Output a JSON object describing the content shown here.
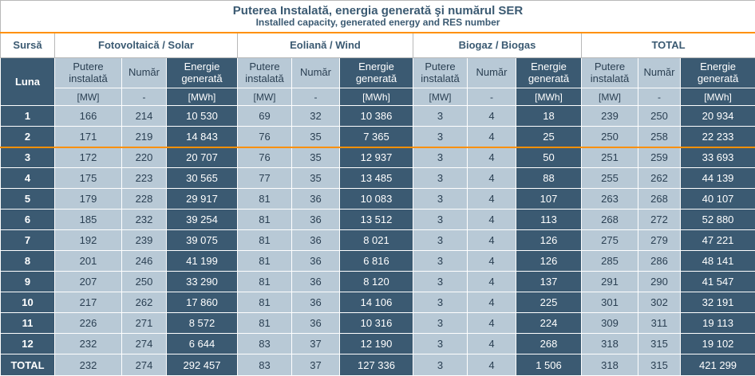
{
  "title": {
    "ro": "Puterea Instalată, energia generată şi numărul SER",
    "en": "Installed capacity, generated energy and RES number"
  },
  "header": {
    "source_label": "Sursă",
    "groups": [
      "Fotovoltaică / Solar",
      "Eoliană / Wind",
      "Biogaz / Biogas",
      "TOTAL"
    ],
    "month_label": "Luna",
    "sub_cols": [
      "Putere instalată",
      "Număr",
      "Energie generată"
    ],
    "units": [
      "[MW]",
      "-",
      "[MWh]"
    ]
  },
  "rows": [
    {
      "luna": "1",
      "cells": [
        "166",
        "214",
        "10 530",
        "69",
        "32",
        "10 386",
        "3",
        "4",
        "18",
        "239",
        "250",
        "20 934"
      ]
    },
    {
      "luna": "2",
      "cells": [
        "171",
        "219",
        "14 843",
        "76",
        "35",
        "7 365",
        "3",
        "4",
        "25",
        "250",
        "258",
        "22 233"
      ]
    },
    {
      "luna": "3",
      "cells": [
        "172",
        "220",
        "20 707",
        "76",
        "35",
        "12 937",
        "3",
        "4",
        "50",
        "251",
        "259",
        "33 693"
      ]
    },
    {
      "luna": "4",
      "cells": [
        "175",
        "223",
        "30 565",
        "77",
        "35",
        "13 485",
        "3",
        "4",
        "88",
        "255",
        "262",
        "44 139"
      ]
    },
    {
      "luna": "5",
      "cells": [
        "179",
        "228",
        "29 917",
        "81",
        "36",
        "10 083",
        "3",
        "4",
        "107",
        "263",
        "268",
        "40 107"
      ]
    },
    {
      "luna": "6",
      "cells": [
        "185",
        "232",
        "39 254",
        "81",
        "36",
        "13 512",
        "3",
        "4",
        "113",
        "268",
        "272",
        "52 880"
      ]
    },
    {
      "luna": "7",
      "cells": [
        "192",
        "239",
        "39 075",
        "81",
        "36",
        "8 021",
        "3",
        "4",
        "126",
        "275",
        "279",
        "47 221"
      ]
    },
    {
      "luna": "8",
      "cells": [
        "201",
        "246",
        "41 199",
        "81",
        "36",
        "6 816",
        "3",
        "4",
        "126",
        "285",
        "286",
        "48 141"
      ]
    },
    {
      "luna": "9",
      "cells": [
        "207",
        "250",
        "33 290",
        "81",
        "36",
        "8 120",
        "3",
        "4",
        "137",
        "291",
        "290",
        "41 547"
      ]
    },
    {
      "luna": "10",
      "cells": [
        "217",
        "262",
        "17 860",
        "81",
        "36",
        "14 106",
        "3",
        "4",
        "225",
        "301",
        "302",
        "32 191"
      ]
    },
    {
      "luna": "11",
      "cells": [
        "226",
        "271",
        "8 572",
        "81",
        "36",
        "10 316",
        "3",
        "4",
        "224",
        "309",
        "311",
        "19 113"
      ]
    },
    {
      "luna": "12",
      "cells": [
        "232",
        "274",
        "6 644",
        "83",
        "37",
        "12 190",
        "3",
        "4",
        "268",
        "318",
        "315",
        "19 102"
      ]
    }
  ],
  "total": {
    "luna": "TOTAL",
    "cells": [
      "232",
      "274",
      "292 457",
      "83",
      "37",
      "127 336",
      "3",
      "4",
      "1 506",
      "318",
      "315",
      "421 299"
    ]
  }
}
